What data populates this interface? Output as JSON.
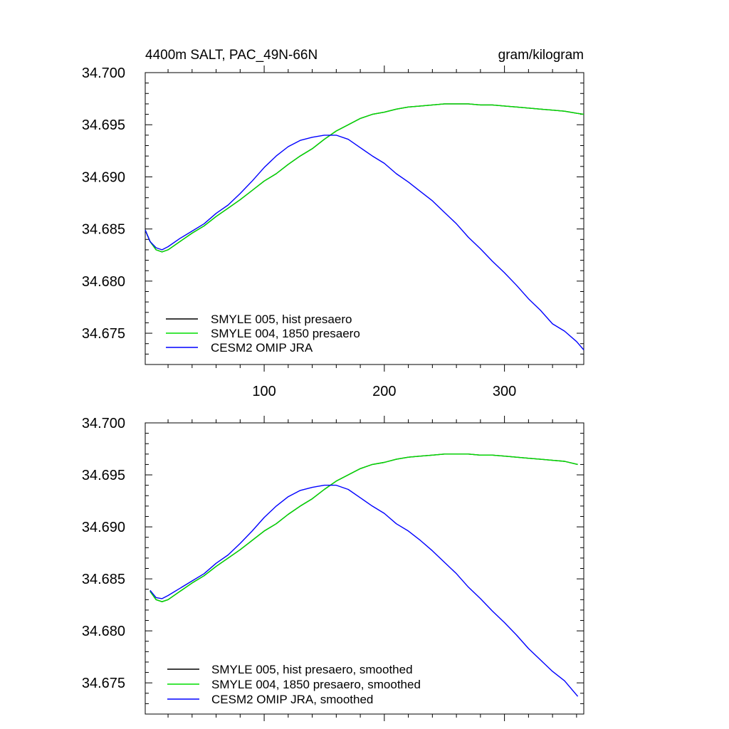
{
  "header": {
    "title_left": "4400m SALT, PAC_49N-66N",
    "title_right": "gram/kilogram"
  },
  "colors": {
    "smyle005": "#000000",
    "smyle004": "#00dd00",
    "omip": "#0000ff"
  },
  "chart_data": [
    {
      "type": "line",
      "title": "4400m SALT, PAC_49N-66N",
      "units": "gram/kilogram",
      "xlim": [
        1,
        366
      ],
      "ylim": [
        34.672,
        34.7
      ],
      "xticks": [
        100,
        200,
        300
      ],
      "xtick_labels": [
        "100",
        "200",
        "300"
      ],
      "yticks": [
        34.675,
        34.68,
        34.685,
        34.69,
        34.695,
        34.7
      ],
      "ytick_labels": [
        "34.675",
        "34.680",
        "34.685",
        "34.690",
        "34.695",
        "34.700"
      ],
      "legend_position": "bottom-left",
      "x": [
        1,
        5,
        10,
        15,
        20,
        30,
        40,
        50,
        60,
        70,
        80,
        90,
        100,
        110,
        120,
        130,
        140,
        150,
        160,
        170,
        180,
        190,
        200,
        210,
        220,
        230,
        240,
        250,
        260,
        270,
        280,
        290,
        300,
        310,
        320,
        330,
        340,
        350,
        360,
        366
      ],
      "series": [
        {
          "name": "SMYLE 005, hist presaero",
          "color_key": "smyle005",
          "values": [
            34.6849,
            34.6838,
            34.683,
            34.6828,
            34.683,
            34.6838,
            34.6846,
            34.6853,
            34.6862,
            34.687,
            34.6878,
            34.6887,
            34.6896,
            34.6903,
            34.6912,
            34.692,
            34.6927,
            34.6936,
            34.6944,
            34.695,
            34.6956,
            34.696,
            34.6962,
            34.6965,
            34.6967,
            34.6968,
            34.6969,
            34.697,
            34.697,
            34.697,
            34.6969,
            34.6969,
            34.6968,
            34.6967,
            34.6966,
            34.6965,
            34.6964,
            34.6963,
            34.6961,
            34.696
          ]
        },
        {
          "name": "SMYLE 004, 1850 presaero",
          "color_key": "smyle004",
          "values": [
            34.6849,
            34.6838,
            34.683,
            34.6828,
            34.683,
            34.6838,
            34.6846,
            34.6853,
            34.6862,
            34.687,
            34.6878,
            34.6887,
            34.6896,
            34.6903,
            34.6912,
            34.692,
            34.6927,
            34.6936,
            34.6944,
            34.695,
            34.6956,
            34.696,
            34.6962,
            34.6965,
            34.6967,
            34.6968,
            34.6969,
            34.697,
            34.697,
            34.697,
            34.6969,
            34.6969,
            34.6968,
            34.6967,
            34.6966,
            34.6965,
            34.6964,
            34.6963,
            34.6961,
            34.696
          ]
        },
        {
          "name": "CESM2 OMIP JRA",
          "color_key": "omip",
          "values": [
            34.6849,
            34.6838,
            34.6832,
            34.683,
            34.6833,
            34.6841,
            34.6848,
            34.6855,
            34.6865,
            34.6873,
            34.6884,
            34.6896,
            34.6909,
            34.692,
            34.6929,
            34.6935,
            34.6938,
            34.694,
            34.694,
            34.6936,
            34.6928,
            34.692,
            34.6913,
            34.6903,
            34.6895,
            34.6886,
            34.6877,
            34.6866,
            34.6855,
            34.6842,
            34.6831,
            34.6819,
            34.6808,
            34.6796,
            34.6783,
            34.6772,
            34.6759,
            34.6752,
            34.6742,
            34.6734
          ]
        }
      ]
    },
    {
      "type": "line",
      "xlim": [
        1,
        366
      ],
      "ylim": [
        34.672,
        34.7
      ],
      "xticks": [
        100,
        200,
        300
      ],
      "yticks": [
        34.675,
        34.68,
        34.685,
        34.69,
        34.695,
        34.7
      ],
      "ytick_labels": [
        "34.675",
        "34.680",
        "34.685",
        "34.690",
        "34.695",
        "34.700"
      ],
      "legend_position": "bottom-left",
      "x": [
        5,
        10,
        15,
        20,
        30,
        40,
        50,
        60,
        70,
        80,
        90,
        100,
        110,
        120,
        130,
        140,
        150,
        160,
        170,
        180,
        190,
        200,
        210,
        220,
        230,
        240,
        250,
        260,
        270,
        280,
        290,
        300,
        310,
        320,
        330,
        340,
        350,
        361
      ],
      "series": [
        {
          "name": "SMYLE 005, hist presaero, smoothed",
          "color_key": "smyle005",
          "values": [
            34.6838,
            34.683,
            34.6828,
            34.683,
            34.6838,
            34.6846,
            34.6853,
            34.6862,
            34.687,
            34.6878,
            34.6887,
            34.6896,
            34.6903,
            34.6912,
            34.692,
            34.6927,
            34.6936,
            34.6944,
            34.695,
            34.6956,
            34.696,
            34.6962,
            34.6965,
            34.6967,
            34.6968,
            34.6969,
            34.697,
            34.697,
            34.697,
            34.6969,
            34.6969,
            34.6968,
            34.6967,
            34.6966,
            34.6965,
            34.6964,
            34.6963,
            34.696
          ]
        },
        {
          "name": "SMYLE 004, 1850 presaero, smoothed",
          "color_key": "smyle004",
          "values": [
            34.6838,
            34.683,
            34.6828,
            34.683,
            34.6838,
            34.6846,
            34.6853,
            34.6862,
            34.687,
            34.6878,
            34.6887,
            34.6896,
            34.6903,
            34.6912,
            34.692,
            34.6927,
            34.6936,
            34.6944,
            34.695,
            34.6956,
            34.696,
            34.6962,
            34.6965,
            34.6967,
            34.6968,
            34.6969,
            34.697,
            34.697,
            34.697,
            34.6969,
            34.6969,
            34.6968,
            34.6967,
            34.6966,
            34.6965,
            34.6964,
            34.6963,
            34.696
          ]
        },
        {
          "name": "CESM2 OMIP JRA, smoothed",
          "color_key": "omip",
          "values": [
            34.6839,
            34.6832,
            34.6831,
            34.6834,
            34.6841,
            34.6848,
            34.6855,
            34.6865,
            34.6873,
            34.6884,
            34.6896,
            34.6909,
            34.692,
            34.6929,
            34.6935,
            34.6938,
            34.694,
            34.694,
            34.6936,
            34.6928,
            34.692,
            34.6913,
            34.6903,
            34.6896,
            34.6887,
            34.6877,
            34.6866,
            34.6855,
            34.6842,
            34.6831,
            34.6819,
            34.6808,
            34.6796,
            34.6783,
            34.6772,
            34.6761,
            34.6752,
            34.6737
          ]
        }
      ]
    }
  ]
}
